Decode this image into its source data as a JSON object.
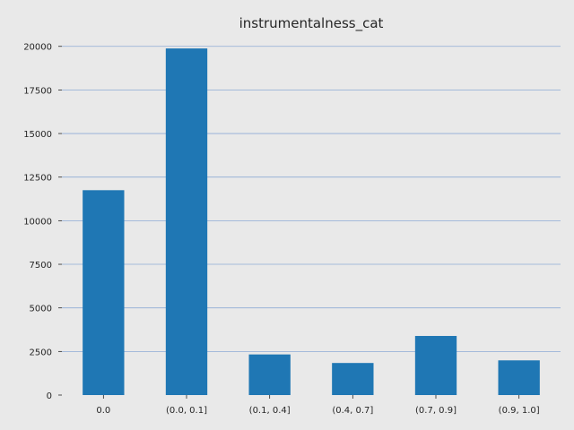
{
  "chart_data": {
    "type": "bar",
    "title": "instrumentalness_cat",
    "xlabel": "",
    "ylabel": "",
    "categories": [
      "0.0",
      "(0.0, 0.1]",
      "(0.1, 0.4]",
      "(0.4, 0.7]",
      "(0.7, 0.9]",
      "(0.9, 1.0]"
    ],
    "values": [
      11750,
      19880,
      2330,
      1840,
      3390,
      1990
    ],
    "yticks": [
      0,
      2500,
      5000,
      7500,
      10000,
      12500,
      15000,
      17500,
      20000
    ],
    "ylim": [
      0,
      20860
    ],
    "grid": "horizontal",
    "legend": "none",
    "colors": {
      "background": "#e9e9e9",
      "bar": "#1f77b4",
      "grid": "#8eaad6",
      "text": "#262626"
    }
  }
}
